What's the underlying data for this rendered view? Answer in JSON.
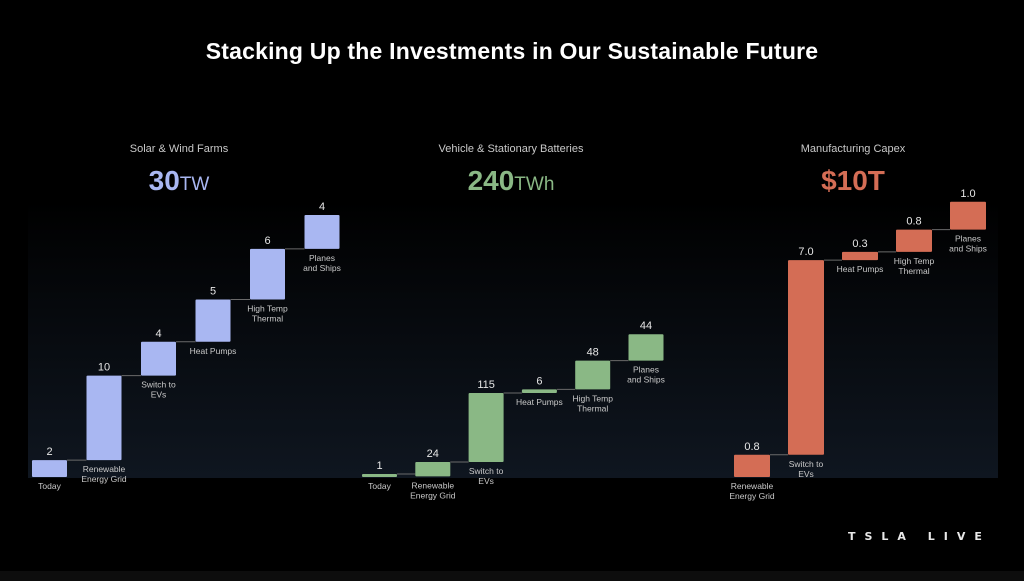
{
  "title": "Stacking Up the Investments in Our Sustainable Future",
  "logo": "TSLA LIVE",
  "colors": {
    "background": "#000000",
    "label": "#c9c9c9",
    "value": "#e6e6e6",
    "connector": "#6a6a6a"
  },
  "chart_data": [
    {
      "type": "bar",
      "subtitle": "Solar & Wind Farms",
      "total": "30",
      "total_unit": "TW",
      "color": "#a9b7f2",
      "categories": [
        "Today",
        "Renewable\nEnergy Grid",
        "Switch to\nEVs",
        "Heat Pumps",
        "High Temp\nThermal",
        "Planes\nand Ships"
      ],
      "values": [
        2,
        10,
        4,
        5,
        6,
        4
      ],
      "value_labels": [
        "2",
        "10",
        "4",
        "5",
        "6",
        "4"
      ]
    },
    {
      "type": "bar",
      "subtitle": "Vehicle & Stationary Batteries",
      "total": "240",
      "total_unit": "TWh",
      "color": "#8ab885",
      "categories": [
        "Today",
        "Renewable\nEnergy Grid",
        "Switch to\nEVs",
        "Heat Pumps",
        "High Temp\nThermal",
        "Planes\nand Ships"
      ],
      "values": [
        1,
        24,
        115,
        6,
        48,
        44
      ],
      "value_labels": [
        "1",
        "24",
        "115",
        "6",
        "48",
        "44"
      ]
    },
    {
      "type": "bar",
      "subtitle": "Manufacturing Capex",
      "total": "$10T",
      "total_unit": "",
      "color": "#d46d55",
      "categories": [
        "Renewable\nEnergy Grid",
        "Switch to\nEVs",
        "Heat Pumps",
        "High Temp\nThermal",
        "Planes\nand Ships"
      ],
      "values": [
        0.8,
        7.0,
        0.3,
        0.8,
        1.0
      ],
      "value_labels": [
        "0.8",
        "7.0",
        "0.3",
        "0.8",
        "1.0"
      ]
    }
  ]
}
